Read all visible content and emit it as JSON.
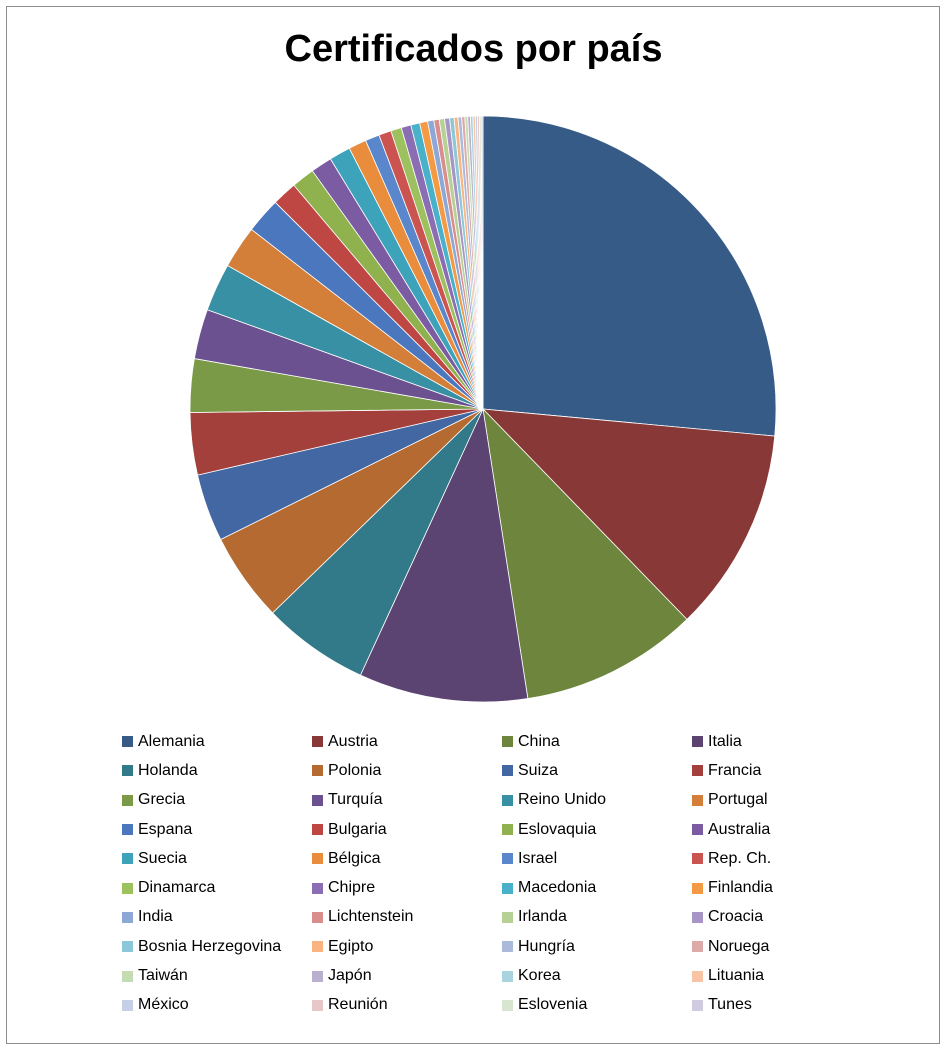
{
  "chart_data": {
    "type": "pie",
    "title": "Certificados por país",
    "legend_position": "bottom",
    "slices": [
      {
        "label": "Alemania",
        "value": 27.0,
        "color": "#375B87"
      },
      {
        "label": "Austria",
        "value": 11.5,
        "color": "#883836"
      },
      {
        "label": "China",
        "value": 10.0,
        "color": "#6E853E"
      },
      {
        "label": "Italia",
        "value": 9.5,
        "color": "#5B4472"
      },
      {
        "label": "Holanda",
        "value": 6.0,
        "color": "#32798A"
      },
      {
        "label": "Polonia",
        "value": 5.0,
        "color": "#B56A31"
      },
      {
        "label": "Suiza",
        "value": 3.8,
        "color": "#4267A2"
      },
      {
        "label": "Francia",
        "value": 3.5,
        "color": "#A3403C"
      },
      {
        "label": "Grecia",
        "value": 3.0,
        "color": "#7A9A47"
      },
      {
        "label": "Turquía",
        "value": 2.8,
        "color": "#6B5190"
      },
      {
        "label": "Reino Unido",
        "value": 2.7,
        "color": "#3890A4"
      },
      {
        "label": "Portugal",
        "value": 2.4,
        "color": "#D37F39"
      },
      {
        "label": "Espana",
        "value": 2.0,
        "color": "#4B77BF"
      },
      {
        "label": "Bulgaria",
        "value": 1.4,
        "color": "#BF4743"
      },
      {
        "label": "Eslovaquia",
        "value": 1.3,
        "color": "#8FB24F"
      },
      {
        "label": "Australia",
        "value": 1.2,
        "color": "#7B5CA2"
      },
      {
        "label": "Suecia",
        "value": 1.2,
        "color": "#3CA3BB"
      },
      {
        "label": "Bélgica",
        "value": 1.0,
        "color": "#E98C3C"
      },
      {
        "label": "Israel",
        "value": 0.8,
        "color": "#5A87CB"
      },
      {
        "label": "Rep. Ch.",
        "value": 0.7,
        "color": "#CC5450"
      },
      {
        "label": "Dinamarca",
        "value": 0.6,
        "color": "#9EC15F"
      },
      {
        "label": "Chipre",
        "value": 0.55,
        "color": "#8A6DB3"
      },
      {
        "label": "Macedonia",
        "value": 0.5,
        "color": "#49B2CA"
      },
      {
        "label": "Finlandia",
        "value": 0.45,
        "color": "#F49A45"
      },
      {
        "label": "India",
        "value": 0.35,
        "color": "#8DA8D6"
      },
      {
        "label": "Lichtenstein",
        "value": 0.3,
        "color": "#D98E8C"
      },
      {
        "label": "Irlanda",
        "value": 0.3,
        "color": "#B6D196"
      },
      {
        "label": "Croacia",
        "value": 0.28,
        "color": "#A795C5"
      },
      {
        "label": "Bosnia Herzegovina",
        "value": 0.25,
        "color": "#8CC8D8"
      },
      {
        "label": "Egipto",
        "value": 0.22,
        "color": "#F9B47F"
      },
      {
        "label": "Hungría",
        "value": 0.2,
        "color": "#AAB9DC"
      },
      {
        "label": "Noruega",
        "value": 0.18,
        "color": "#DDAAA9"
      },
      {
        "label": "Taiwán",
        "value": 0.16,
        "color": "#C5DCB3"
      },
      {
        "label": "Japón",
        "value": 0.15,
        "color": "#B9AFCF"
      },
      {
        "label": "Korea",
        "value": 0.14,
        "color": "#A9D3DF"
      },
      {
        "label": "Lituania",
        "value": 0.13,
        "color": "#F8C4A6"
      },
      {
        "label": "México",
        "value": 0.12,
        "color": "#C7CFE6"
      },
      {
        "label": "Reunión",
        "value": 0.11,
        "color": "#E6C8C8"
      },
      {
        "label": "Eslovenia",
        "value": 0.1,
        "color": "#D9E6CF"
      },
      {
        "label": "Tunes",
        "value": 0.1,
        "color": "#D1CBE0"
      }
    ]
  }
}
